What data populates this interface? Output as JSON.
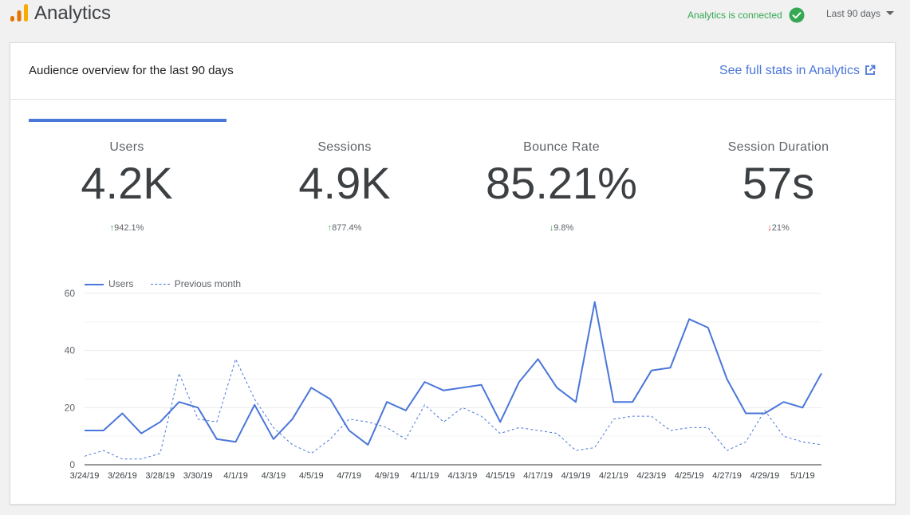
{
  "app": {
    "title": "Analytics"
  },
  "header": {
    "connection_status": "Analytics is connected",
    "range_label": "Last 90 days"
  },
  "card": {
    "title": "Audience overview for the last 90 days",
    "link_label": "See full stats in Analytics"
  },
  "metrics": [
    {
      "label": "Users",
      "value": "4.2K",
      "change": "942.1%",
      "direction": "up"
    },
    {
      "label": "Sessions",
      "value": "4.9K",
      "change": "877.4%",
      "direction": "up"
    },
    {
      "label": "Bounce Rate",
      "value": "85.21%",
      "change": "9.8%",
      "direction": "down"
    },
    {
      "label": "Session Duration",
      "value": "57s",
      "change": "21%",
      "direction": "down"
    }
  ],
  "colors": {
    "accent": "#4a76d9",
    "positive": "#34a853",
    "negative": "#d93025"
  },
  "chart_data": {
    "type": "line",
    "legend": "top-left",
    "ylim": [
      0,
      60
    ],
    "yticks": [
      0,
      20,
      40,
      60
    ],
    "grid": true,
    "x_labels": [
      "3/24/19",
      "3/26/19",
      "3/28/19",
      "3/30/19",
      "4/1/19",
      "4/3/19",
      "4/5/19",
      "4/7/19",
      "4/9/19",
      "4/11/19",
      "4/13/19",
      "4/15/19",
      "4/17/19",
      "4/19/19",
      "4/21/19",
      "4/23/19",
      "4/25/19",
      "4/27/19",
      "4/29/19",
      "5/1/19"
    ],
    "x": [
      "3/24/19",
      "3/25/19",
      "3/26/19",
      "3/27/19",
      "3/28/19",
      "3/29/19",
      "3/30/19",
      "3/31/19",
      "4/1/19",
      "4/2/19",
      "4/3/19",
      "4/4/19",
      "4/5/19",
      "4/6/19",
      "4/7/19",
      "4/8/19",
      "4/9/19",
      "4/10/19",
      "4/11/19",
      "4/12/19",
      "4/13/19",
      "4/14/19",
      "4/15/19",
      "4/16/19",
      "4/17/19",
      "4/18/19",
      "4/19/19",
      "4/20/19",
      "4/21/19",
      "4/22/19",
      "4/23/19",
      "4/24/19",
      "4/25/19",
      "4/26/19",
      "4/27/19",
      "4/28/19",
      "4/29/19",
      "4/30/19",
      "5/1/19",
      "5/2/19"
    ],
    "series": [
      {
        "name": "Users",
        "style": "solid",
        "values": [
          12,
          12,
          18,
          11,
          15,
          22,
          20,
          9,
          8,
          21,
          9,
          16,
          27,
          23,
          12,
          7,
          22,
          19,
          29,
          26,
          27,
          28,
          15,
          29,
          37,
          27,
          22,
          57,
          22,
          22,
          33,
          34,
          51,
          48,
          30,
          18,
          18,
          22,
          20,
          32
        ]
      },
      {
        "name": "Previous month",
        "style": "dashed",
        "values": [
          3,
          5,
          2,
          2,
          4,
          32,
          16,
          15,
          37,
          23,
          13,
          7,
          4,
          9,
          16,
          15,
          13,
          9,
          21,
          15,
          20,
          17,
          11,
          13,
          12,
          11,
          5,
          6,
          16,
          17,
          17,
          12,
          13,
          13,
          5,
          8,
          19,
          10,
          8,
          7
        ]
      }
    ]
  }
}
